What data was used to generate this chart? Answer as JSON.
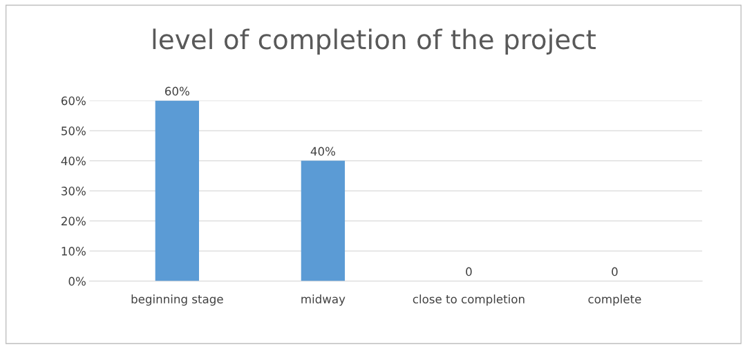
{
  "chart_data": {
    "type": "bar",
    "title": "level of completion of the project",
    "categories": [
      "beginning stage",
      "midway",
      "close to completion",
      "complete"
    ],
    "values": [
      60,
      40,
      0,
      0
    ],
    "color": "#5b9bd5",
    "value_labels": [
      "60%",
      "40%",
      "0",
      "0"
    ],
    "ylim": [
      0,
      60
    ],
    "yticks": [
      {
        "value": 0,
        "label": "0%"
      },
      {
        "value": 10,
        "label": "10%"
      },
      {
        "value": 20,
        "label": "20%"
      },
      {
        "value": 30,
        "label": "30%"
      },
      {
        "value": 40,
        "label": "40%"
      },
      {
        "value": 50,
        "label": "50%"
      },
      {
        "value": 60,
        "label": "60%"
      }
    ],
    "grid": "y",
    "legend": false
  }
}
